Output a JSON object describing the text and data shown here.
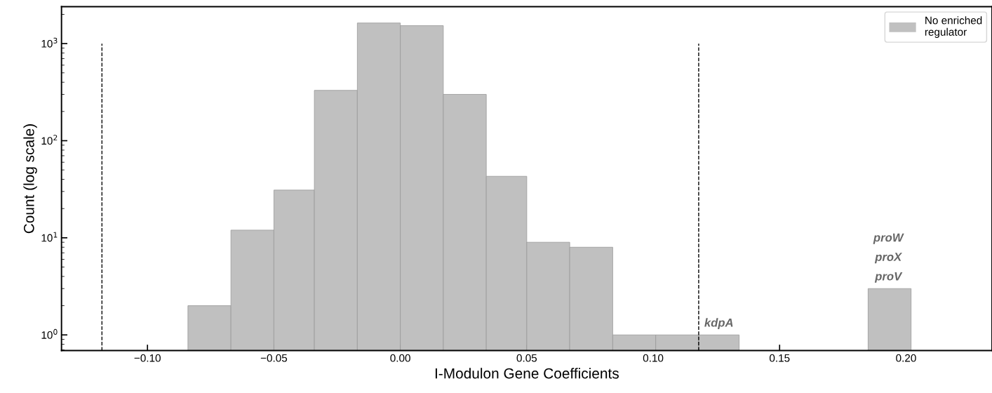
{
  "chart_data": {
    "type": "histogram",
    "xlabel": "I-Modulon Gene Coefficients",
    "ylabel": "Count (log scale)",
    "bins": [
      -0.084,
      -0.067,
      -0.05,
      -0.034,
      -0.017,
      0.0,
      0.017,
      0.034,
      0.05,
      0.067,
      0.084,
      0.101,
      0.118,
      0.134,
      0.185,
      0.202
    ],
    "series": [
      {
        "name": "No enriched\nregulator",
        "color": "#c0c0c0",
        "values": [
          2,
          12,
          31,
          330,
          1630,
          1530,
          300,
          43,
          9,
          8,
          1,
          1,
          1,
          null,
          3
        ]
      }
    ],
    "log": "y",
    "xlim": [
      -0.134,
      0.234
    ],
    "ylim": [
      0.69,
      2400
    ],
    "xticks": [
      {
        "value": -0.1,
        "label": "−0.10"
      },
      {
        "value": -0.05,
        "label": "−0.05"
      },
      {
        "value": 0,
        "label": "0.00"
      },
      {
        "value": 0.05,
        "label": "0.05"
      },
      {
        "value": 0.1,
        "label": "0.10"
      },
      {
        "value": 0.15,
        "label": "0.15"
      },
      {
        "value": 0.2,
        "label": "0.20"
      }
    ],
    "yticks": [
      {
        "value": 1,
        "label": "10$^{0}$"
      },
      {
        "value": 10,
        "label": "10$^{1}$"
      },
      {
        "value": 100,
        "label": "10$^{2}$"
      },
      {
        "value": 1000,
        "label": "10$^{3}$"
      }
    ],
    "ref_lines": [
      {
        "axis": "x",
        "value": -0.118,
        "color": "#000000",
        "line_style": "dashed"
      },
      {
        "axis": "x",
        "value": 0.118,
        "color": "#000000",
        "line_style": "dashed"
      }
    ],
    "annotations": [
      {
        "text": "proW\nproX\nproV",
        "x": 0.193,
        "y": 3
      },
      {
        "text": "kdpA",
        "x": 0.126,
        "y": 1
      }
    ],
    "legend": "top right",
    "grid": false
  }
}
